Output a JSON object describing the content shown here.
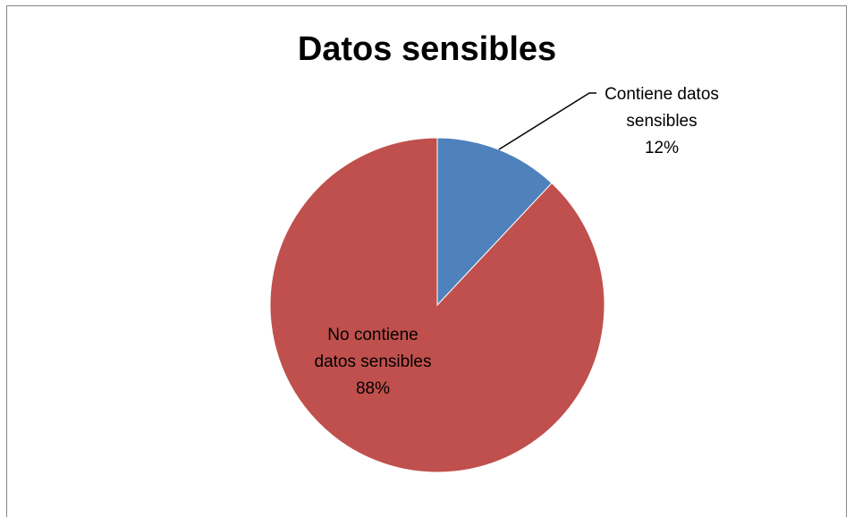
{
  "chart_data": {
    "type": "pie",
    "title": "Datos sensibles",
    "slices": [
      {
        "label_lines": [
          "Contiene datos",
          "sensibles",
          "12%"
        ],
        "value": 12,
        "color": "#4f81bd"
      },
      {
        "label_lines": [
          "No contiene",
          "datos sensibles",
          "88%"
        ],
        "value": 88,
        "color": "#c0504d"
      }
    ],
    "start_angle_deg": 0,
    "direction": "clockwise",
    "legend": "none"
  }
}
